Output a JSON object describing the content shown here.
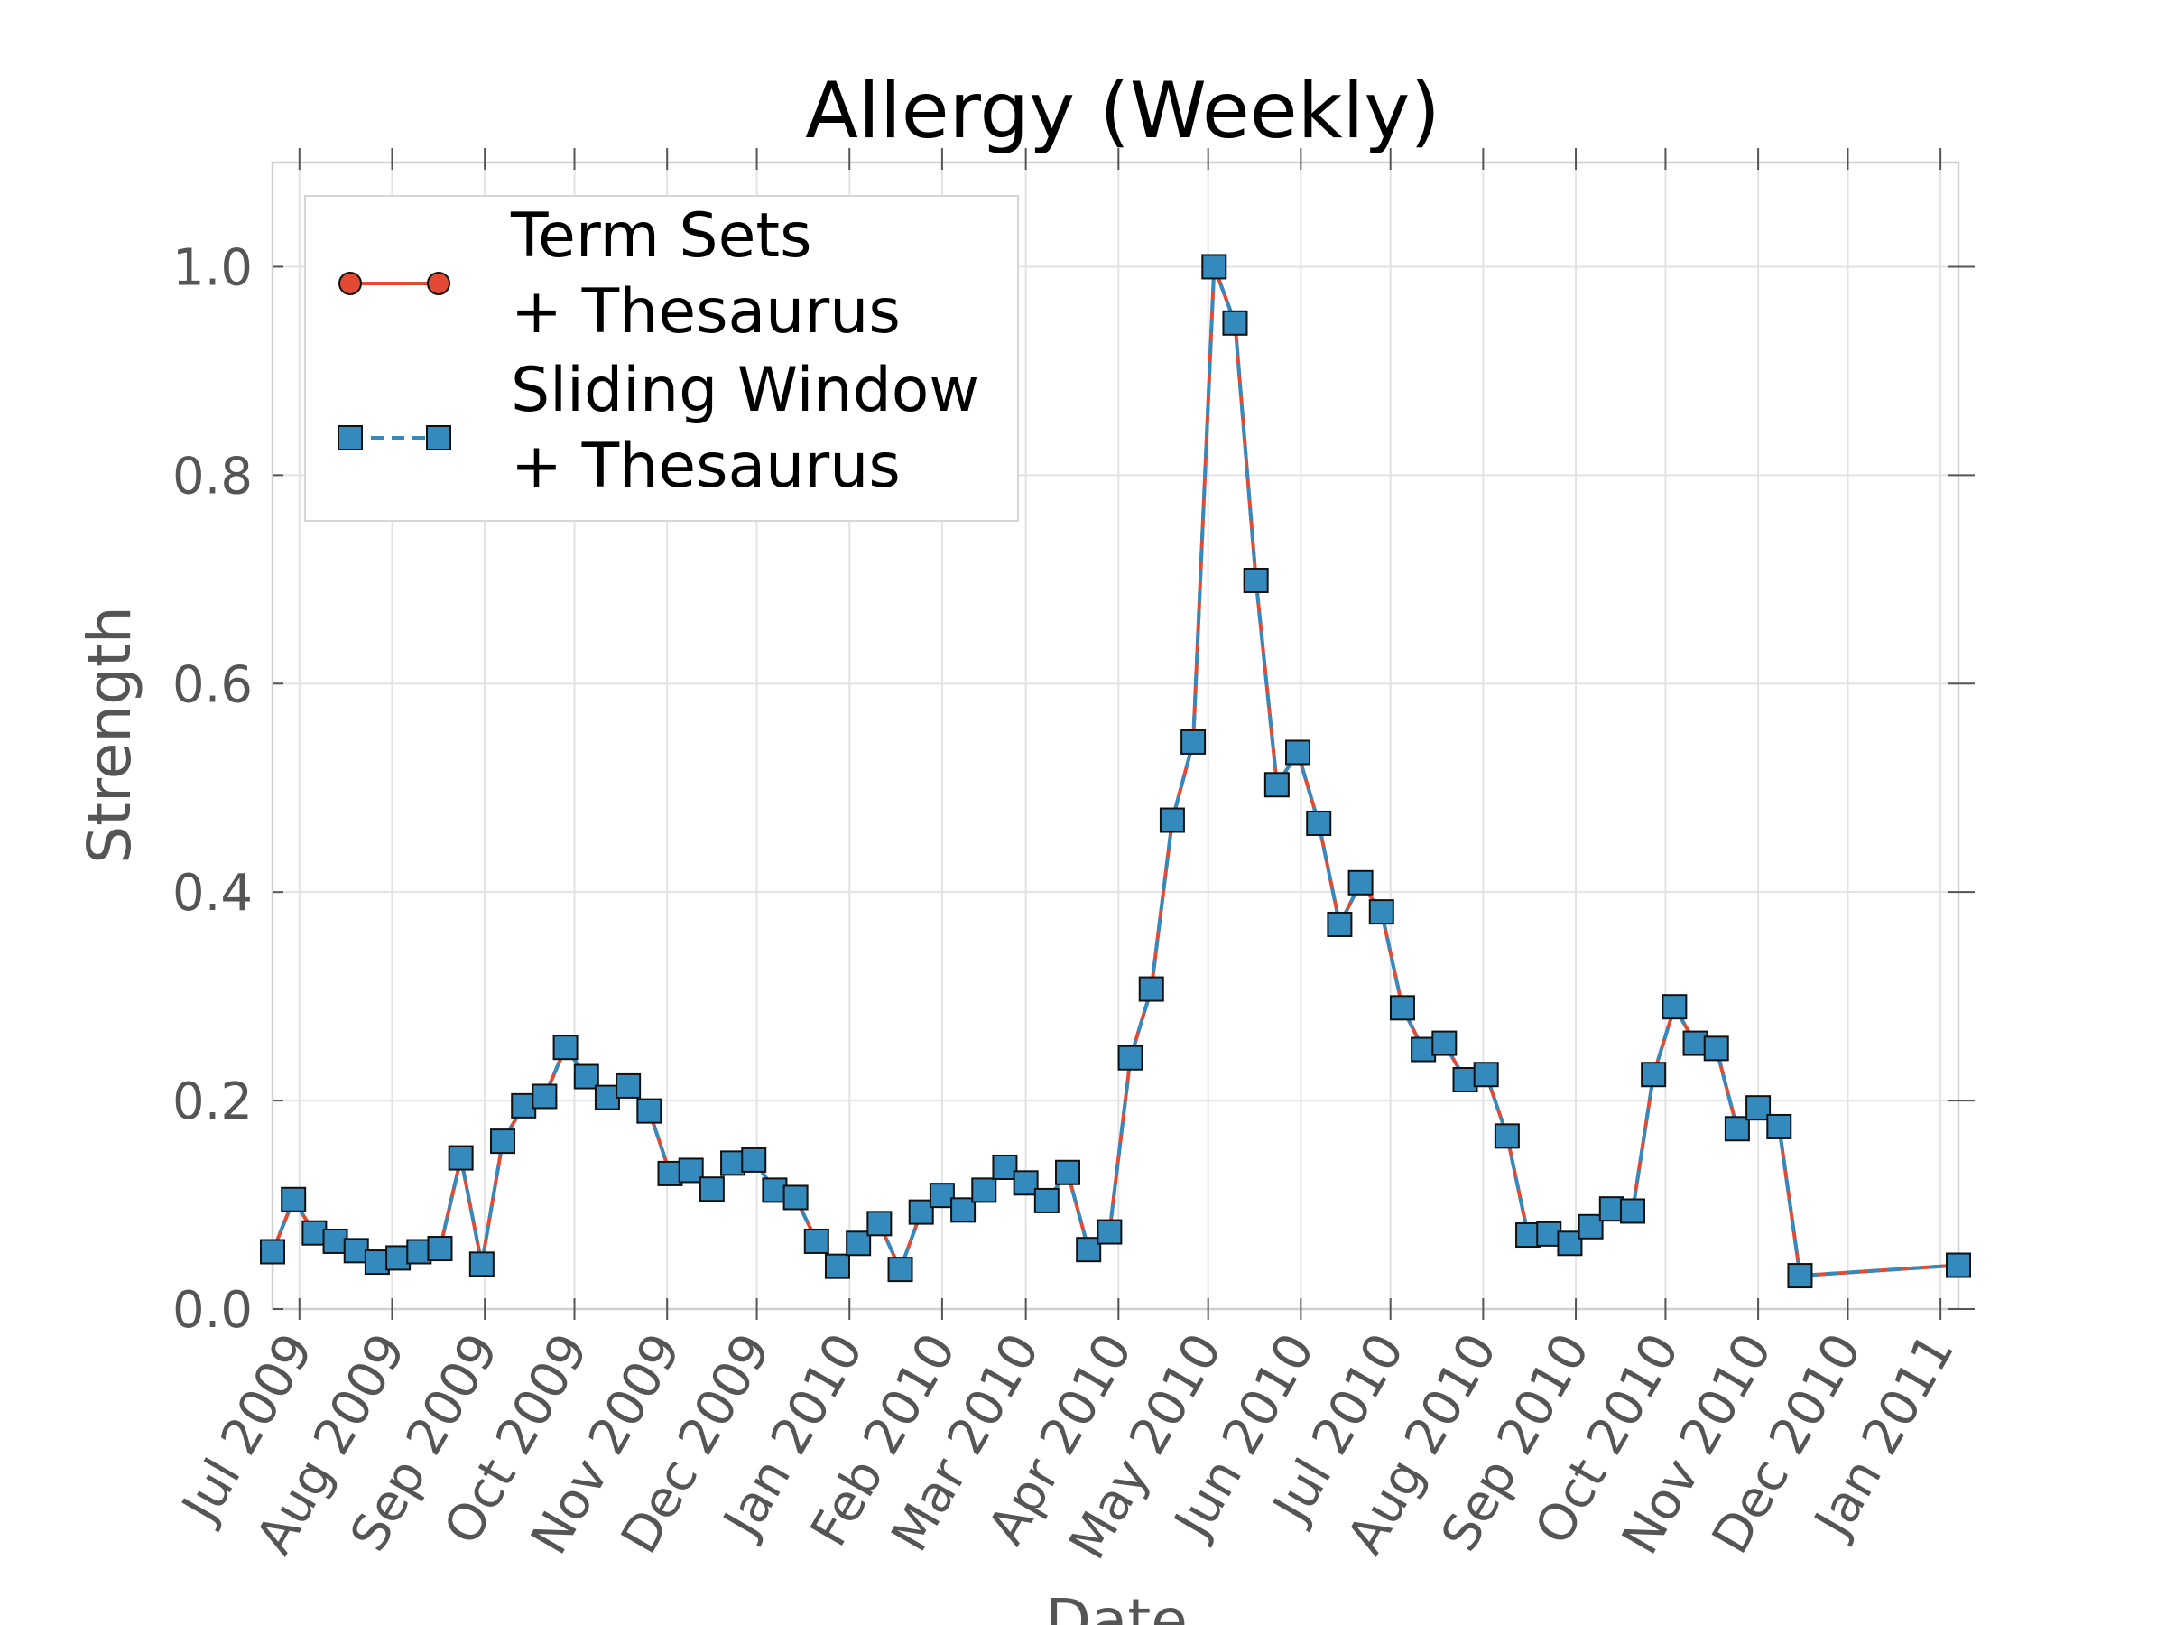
{
  "chart_data": {
    "type": "line",
    "title": "Allergy (Weekly)",
    "xlabel": "Date",
    "ylabel": "Strength",
    "ylim": [
      0.0,
      1.1
    ],
    "xlim": [
      "2009-06-22",
      "2011-01-07"
    ],
    "y_ticks": [
      "0.0",
      "0.2",
      "0.4",
      "0.6",
      "0.8",
      "1.0"
    ],
    "x_ticks": [
      {
        "date": "2009-07-01",
        "label": "Jul 2009"
      },
      {
        "date": "2009-08-01",
        "label": "Aug 2009"
      },
      {
        "date": "2009-09-01",
        "label": "Sep 2009"
      },
      {
        "date": "2009-10-01",
        "label": "Oct 2009"
      },
      {
        "date": "2009-11-01",
        "label": "Nov 2009"
      },
      {
        "date": "2009-12-01",
        "label": "Dec 2009"
      },
      {
        "date": "2010-01-01",
        "label": "Jan 2010"
      },
      {
        "date": "2010-02-01",
        "label": "Feb 2010"
      },
      {
        "date": "2010-03-01",
        "label": "Mar 2010"
      },
      {
        "date": "2010-04-01",
        "label": "Apr 2010"
      },
      {
        "date": "2010-05-01",
        "label": "May 2010"
      },
      {
        "date": "2010-06-01",
        "label": "Jun 2010"
      },
      {
        "date": "2010-07-01",
        "label": "Jul 2010"
      },
      {
        "date": "2010-08-01",
        "label": "Aug 2010"
      },
      {
        "date": "2010-09-01",
        "label": "Sep 2010"
      },
      {
        "date": "2010-10-01",
        "label": "Oct 2010"
      },
      {
        "date": "2010-11-01",
        "label": "Nov 2010"
      },
      {
        "date": "2010-12-01",
        "label": "Dec 2010"
      },
      {
        "date": "2011-01-01",
        "label": "Jan 2011"
      }
    ],
    "grid": true,
    "legend": {
      "position": "top-left"
    },
    "x": [
      "2009-06-22",
      "2009-06-29",
      "2009-07-06",
      "2009-07-13",
      "2009-07-20",
      "2009-07-27",
      "2009-08-03",
      "2009-08-10",
      "2009-08-17",
      "2009-08-24",
      "2009-08-31",
      "2009-09-07",
      "2009-09-14",
      "2009-09-21",
      "2009-09-28",
      "2009-10-05",
      "2009-10-12",
      "2009-10-19",
      "2009-10-26",
      "2009-11-02",
      "2009-11-09",
      "2009-11-16",
      "2009-11-23",
      "2009-11-30",
      "2009-12-07",
      "2009-12-14",
      "2009-12-21",
      "2009-12-28",
      "2010-01-04",
      "2010-01-11",
      "2010-01-18",
      "2010-01-25",
      "2010-02-01",
      "2010-02-08",
      "2010-02-15",
      "2010-02-22",
      "2010-03-01",
      "2010-03-08",
      "2010-03-15",
      "2010-03-22",
      "2010-03-29",
      "2010-04-05",
      "2010-04-12",
      "2010-04-19",
      "2010-04-26",
      "2010-05-03",
      "2010-05-10",
      "2010-05-17",
      "2010-05-24",
      "2010-05-31",
      "2010-06-07",
      "2010-06-14",
      "2010-06-21",
      "2010-06-28",
      "2010-07-05",
      "2010-07-12",
      "2010-07-19",
      "2010-07-26",
      "2010-08-02",
      "2010-08-09",
      "2010-08-16",
      "2010-08-23",
      "2010-08-30",
      "2010-09-06",
      "2010-09-13",
      "2010-09-20",
      "2010-09-27",
      "2010-10-04",
      "2010-10-11",
      "2010-10-18",
      "2010-10-25",
      "2010-11-01",
      "2010-11-08",
      "2010-11-15",
      "2011-01-07"
    ],
    "series": [
      {
        "name": "Term Sets\n+ Thesaurus",
        "color": "#e24a33",
        "linestyle": "solid",
        "marker": "circle",
        "values": [
          0.055,
          0.105,
          0.073,
          0.065,
          0.056,
          0.045,
          0.049,
          0.055,
          0.058,
          0.145,
          0.043,
          0.161,
          0.195,
          0.204,
          0.251,
          0.223,
          0.203,
          0.214,
          0.19,
          0.13,
          0.133,
          0.115,
          0.14,
          0.143,
          0.114,
          0.107,
          0.065,
          0.041,
          0.063,
          0.082,
          0.038,
          0.093,
          0.109,
          0.095,
          0.114,
          0.136,
          0.121,
          0.104,
          0.131,
          0.057,
          0.074,
          0.241,
          0.307,
          0.469,
          0.544,
          1.0,
          0.946,
          0.699,
          0.503,
          0.534,
          0.466,
          0.369,
          0.409,
          0.381,
          0.289,
          0.249,
          0.255,
          0.22,
          0.225,
          0.166,
          0.071,
          0.072,
          0.063,
          0.079,
          0.096,
          0.094,
          0.225,
          0.29,
          0.255,
          0.25,
          0.173,
          0.193,
          0.175,
          0.032,
          0.042
        ]
      },
      {
        "name": "Sliding Window\n+ Thesaurus",
        "color": "#348abd",
        "linestyle": "dashed",
        "marker": "square",
        "values": [
          0.055,
          0.105,
          0.073,
          0.065,
          0.056,
          0.045,
          0.049,
          0.055,
          0.058,
          0.145,
          0.043,
          0.161,
          0.195,
          0.204,
          0.251,
          0.223,
          0.203,
          0.214,
          0.19,
          0.13,
          0.133,
          0.115,
          0.14,
          0.143,
          0.114,
          0.107,
          0.065,
          0.041,
          0.063,
          0.082,
          0.038,
          0.093,
          0.109,
          0.095,
          0.114,
          0.136,
          0.121,
          0.104,
          0.131,
          0.057,
          0.074,
          0.241,
          0.307,
          0.469,
          0.544,
          1.0,
          0.946,
          0.699,
          0.503,
          0.534,
          0.466,
          0.369,
          0.409,
          0.381,
          0.289,
          0.249,
          0.255,
          0.22,
          0.225,
          0.166,
          0.071,
          0.072,
          0.063,
          0.079,
          0.096,
          0.094,
          0.225,
          0.29,
          0.255,
          0.25,
          0.173,
          0.193,
          0.175,
          0.032,
          0.042
        ]
      }
    ]
  }
}
